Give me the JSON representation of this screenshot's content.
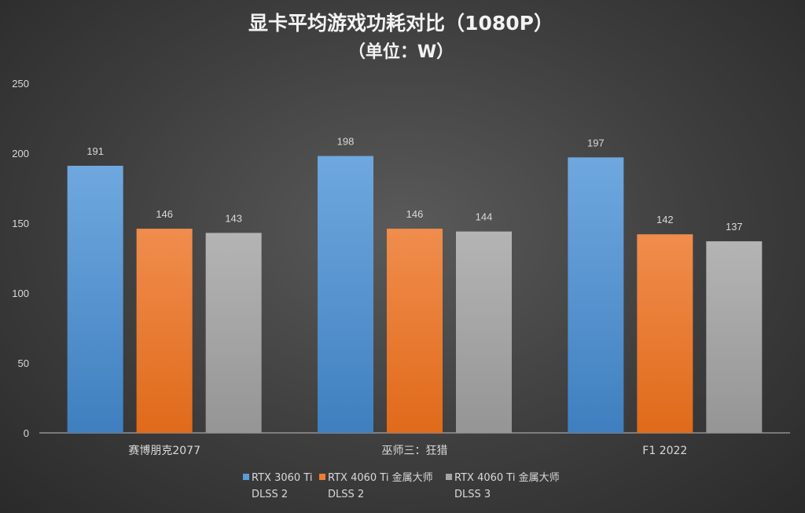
{
  "chart_data": {
    "type": "bar",
    "title": "显卡平均游戏功耗对比（1080P）",
    "subtitle": "（单位：W）",
    "categories": [
      "赛博朋克2077",
      "巫师三：狂猎",
      "F1 2022"
    ],
    "series": [
      {
        "name": "RTX 3060 Ti DLSS 2",
        "name_lines": [
          "RTX 3060 Ti",
          "DLSS 2"
        ],
        "values": [
          191,
          198,
          197
        ],
        "color": "#5b9bd5",
        "color_light": "#6fa8df",
        "color_dark": "#3f7fbf"
      },
      {
        "name": "RTX 4060 Ti 金属大师 DLSS 2",
        "name_lines": [
          "RTX 4060 Ti 金属大师",
          "DLSS 2"
        ],
        "values": [
          146,
          146,
          142
        ],
        "color": "#ed7d31",
        "color_light": "#f08d4d",
        "color_dark": "#e06a1a"
      },
      {
        "name": "RTX 4060 Ti 金属大师 DLSS 3",
        "name_lines": [
          "RTX 4060 Ti 金属大师",
          "DLSS 3"
        ],
        "values": [
          143,
          144,
          137
        ],
        "color": "#a5a5a5",
        "color_light": "#b4b4b4",
        "color_dark": "#959595"
      }
    ],
    "ylim": [
      0,
      250
    ],
    "yticks": [
      0,
      50,
      100,
      150,
      200,
      250
    ],
    "xlabel": "",
    "ylabel": "",
    "grid": false,
    "legend_position": "bottom"
  }
}
